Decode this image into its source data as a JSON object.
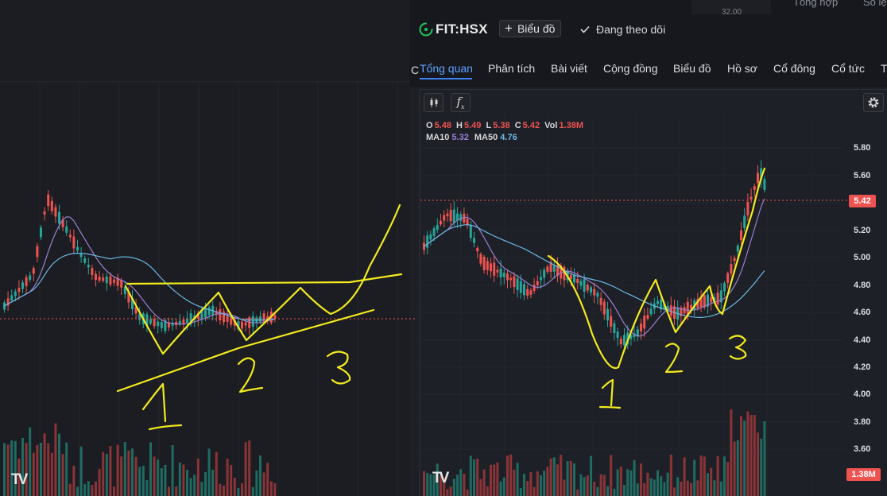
{
  "header": {
    "ticker": "FIT:HSX",
    "chart_button_label": "Biểu đồ",
    "follow_label": "Đang theo dõi",
    "peek_value": "32.00",
    "peek_tabs": [
      "Tổng hợp",
      "Sổ lệ"
    ]
  },
  "tabs": [
    "Tổng quan",
    "Phân tích",
    "Bài viết",
    "Cộng đồng",
    "Biểu đồ",
    "Hồ sơ",
    "Cổ đông",
    "Cổ tức",
    "T"
  ],
  "active_tab": "Tổng quan",
  "cut_letter": "C",
  "legend": {
    "o_label": "O",
    "o": "5.48",
    "h_label": "H",
    "h": "5.49",
    "l_label": "L",
    "l": "5.38",
    "c_label": "C",
    "c": "5.42",
    "vol_label": "Vol",
    "vol": "1.38M",
    "ma10_label": "MA10",
    "ma10": "5.32",
    "ma50_label": "MA50",
    "ma50": "4.76"
  },
  "y_ticks": [
    "5.80",
    "5.60",
    "5.20",
    "5.00",
    "4.80",
    "4.60",
    "4.40",
    "4.20",
    "4.00",
    "3.80",
    "3.60"
  ],
  "last_price": "5.42",
  "last_volume": "1.38M",
  "watermark": "TV",
  "icons": [
    "ticker-status-icon",
    "plus-icon",
    "check-icon",
    "candlestick-icon",
    "fx-indicator-icon",
    "gear-icon"
  ],
  "colors": {
    "up": "#26a69a",
    "down": "#ef5350",
    "ma10": "#9a7fd1",
    "ma50": "#6cb6e3",
    "annotation": "#f2ea1f",
    "tab_active": "#5ea3ff"
  },
  "chart_data": [
    {
      "type": "candlestick",
      "panel": "left",
      "series": [
        "price",
        "MA10",
        "MA50",
        "volume"
      ],
      "annotations": [
        "1",
        "2",
        "3"
      ]
    },
    {
      "type": "candlestick",
      "panel": "right",
      "y_ticks": [
        5.8,
        5.6,
        5.2,
        5.0,
        4.8,
        4.6,
        4.4,
        4.2,
        4.0,
        3.8,
        3.6
      ],
      "last_price": 5.42,
      "series": [
        "price",
        "MA10",
        "MA50",
        "volume"
      ],
      "annotations": [
        "1",
        "2",
        "3"
      ]
    }
  ]
}
